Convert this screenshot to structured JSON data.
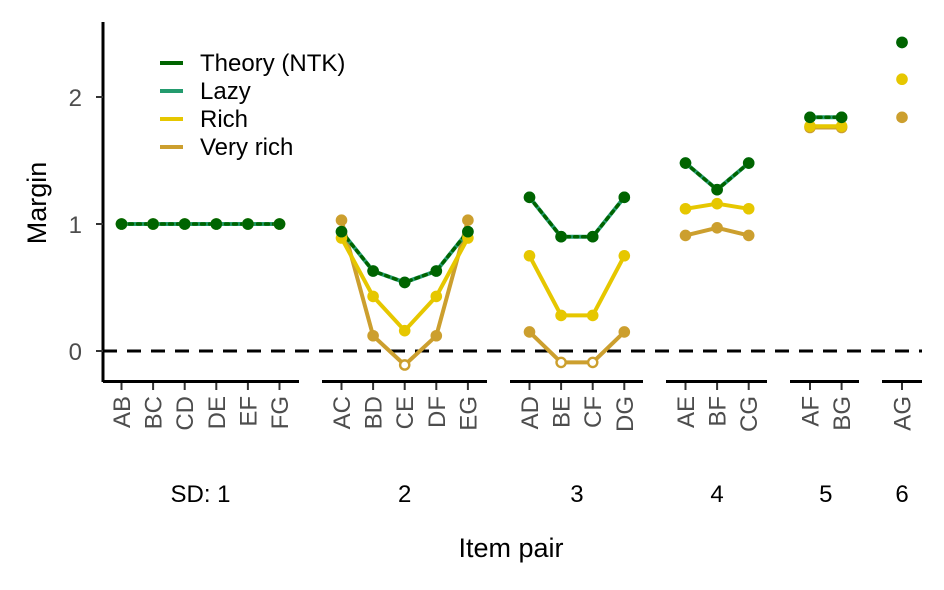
{
  "chart_data": {
    "type": "line",
    "xlabel": "Item pair",
    "ylabel": "Margin",
    "ylim": [
      -0.23,
      2.6
    ],
    "y_ticks": [
      "0",
      "1",
      "2"
    ],
    "y_tick_values": [
      0,
      1,
      2
    ],
    "reference_line": {
      "y": 0,
      "style": "dashed"
    },
    "legend_position": "top-left",
    "groups": [
      {
        "label": "SD: 1",
        "categories": [
          "AB",
          "BC",
          "CD",
          "DE",
          "EF",
          "FG"
        ]
      },
      {
        "label": "2",
        "categories": [
          "AC",
          "BD",
          "CE",
          "DF",
          "EG"
        ]
      },
      {
        "label": "3",
        "categories": [
          "AD",
          "BE",
          "CF",
          "DG"
        ]
      },
      {
        "label": "4",
        "categories": [
          "AE",
          "BF",
          "CG"
        ]
      },
      {
        "label": "5",
        "categories": [
          "AF",
          "BG"
        ]
      },
      {
        "label": "6",
        "categories": [
          "AG"
        ]
      }
    ],
    "series": [
      {
        "name": "Very rich",
        "color": "#cc9f2e",
        "values": [
          [
            1,
            1,
            1,
            1,
            1,
            1
          ],
          [
            1.03,
            0.12,
            -0.11,
            0.12,
            1.03
          ],
          [
            0.15,
            -0.09,
            -0.09,
            0.15
          ],
          [
            0.91,
            0.97,
            0.91
          ],
          [
            1.76,
            1.76
          ],
          [
            1.84
          ]
        ]
      },
      {
        "name": "Rich",
        "color": "#e6c700",
        "values": [
          [
            1,
            1,
            1,
            1,
            1,
            1
          ],
          [
            0.89,
            0.43,
            0.16,
            0.43,
            0.89
          ],
          [
            0.75,
            0.28,
            0.28,
            0.75
          ],
          [
            1.12,
            1.16,
            1.12
          ],
          [
            1.77,
            1.77
          ],
          [
            2.14
          ]
        ]
      },
      {
        "name": "Lazy",
        "color": "#239b6e",
        "values": [
          [
            1,
            1,
            1,
            1,
            1,
            1
          ],
          [
            0.94,
            0.63,
            0.54,
            0.63,
            0.94
          ],
          [
            1.21,
            0.9,
            0.9,
            1.21
          ],
          [
            1.48,
            1.27,
            1.48
          ],
          [
            1.84,
            1.84
          ],
          [
            2.43
          ]
        ]
      },
      {
        "name": "Theory (NTK)",
        "color": "#006400",
        "values": [
          [
            1,
            1,
            1,
            1,
            1,
            1
          ],
          [
            0.94,
            0.63,
            0.54,
            0.63,
            0.94
          ],
          [
            1.21,
            0.9,
            0.9,
            1.21
          ],
          [
            1.48,
            1.27,
            1.48
          ],
          [
            1.84,
            1.84
          ],
          [
            2.43
          ]
        ]
      }
    ],
    "legend": [
      {
        "name": "Theory (NTK)",
        "color": "#006400"
      },
      {
        "name": "Lazy",
        "color": "#239b6e"
      },
      {
        "name": "Rich",
        "color": "#e6c700"
      },
      {
        "name": "Very rich",
        "color": "#cc9f2e"
      }
    ]
  }
}
